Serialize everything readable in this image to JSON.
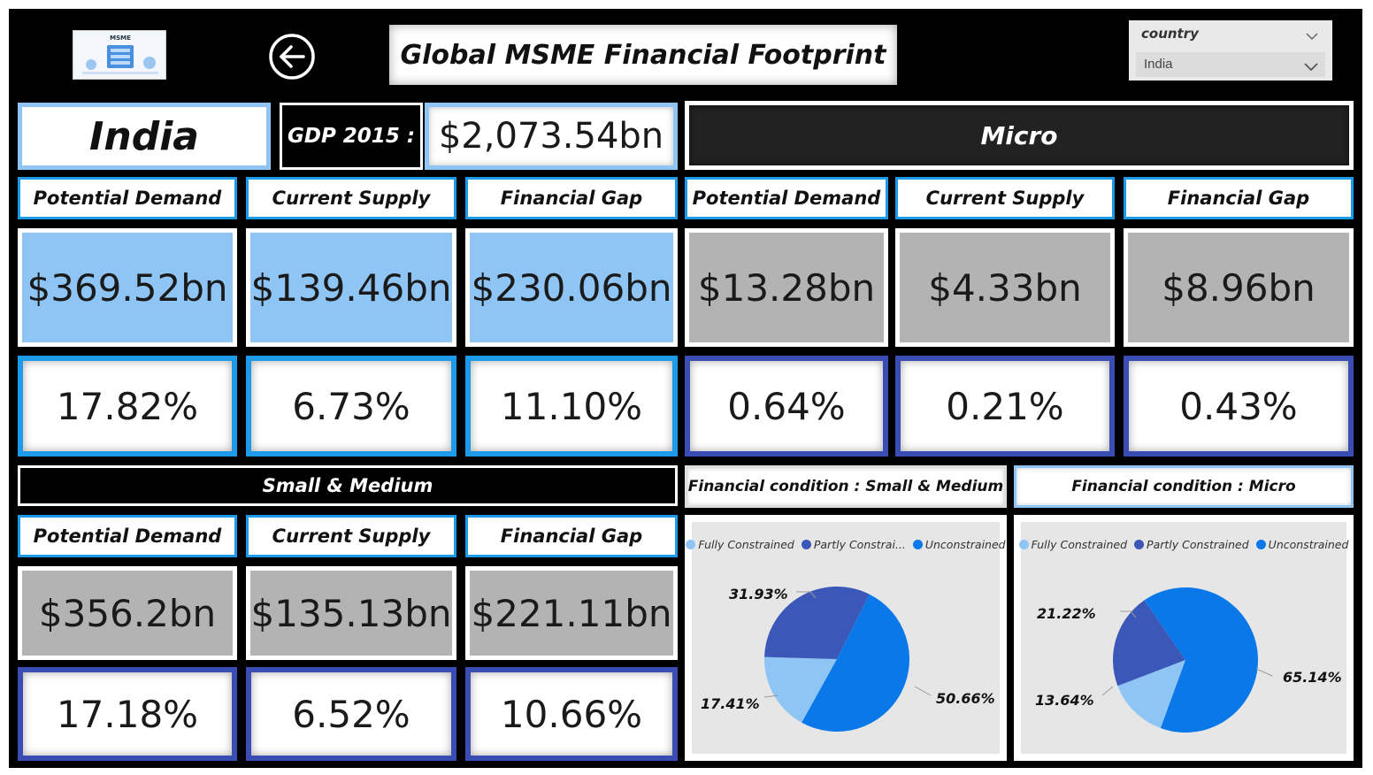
{
  "header": {
    "title": "Global MSME Financial Footprint",
    "logo_icon": "msme-logo-icon",
    "back_icon": "back-arrow-icon"
  },
  "filter": {
    "label": "country",
    "value": "India"
  },
  "country": {
    "name": "India",
    "gdp_label": "GDP 2015 :",
    "gdp_value": "$2,073.54bn"
  },
  "total": {
    "headers": [
      "Potential Demand",
      "Current Supply",
      "Financial Gap"
    ],
    "values": [
      "$369.52bn",
      "$139.46bn",
      "$230.06bn"
    ],
    "percents": [
      "17.82%",
      "6.73%",
      "11.10%"
    ]
  },
  "micro": {
    "title": "Micro",
    "headers": [
      "Potential Demand",
      "Current Supply",
      "Financial Gap"
    ],
    "values": [
      "$13.28bn",
      "$4.33bn",
      "$8.96bn"
    ],
    "percents": [
      "0.64%",
      "0.21%",
      "0.43%"
    ]
  },
  "small_medium": {
    "title": "Small & Medium",
    "headers": [
      "Potential Demand",
      "Current Supply",
      "Financial Gap"
    ],
    "values": [
      "$356.2bn",
      "$135.13bn",
      "$221.11bn"
    ],
    "percents": [
      "17.18%",
      "6.52%",
      "10.66%"
    ]
  },
  "colors": {
    "fully": "#8ec5f5",
    "partly": "#3b58b8",
    "unconstrained": "#0a78e8"
  },
  "chart_data": [
    {
      "type": "pie",
      "title": "Financial condition : Small & Medium",
      "legend": [
        "Fully Constrained",
        "Partly Constrai...",
        "Unconstrained"
      ],
      "categories": [
        "Fully Constrained",
        "Partly Constrained",
        "Unconstrained"
      ],
      "values": [
        17.41,
        31.93,
        50.66
      ],
      "labels": [
        "17.41%",
        "31.93%",
        "50.66%"
      ],
      "legend_position": "top"
    },
    {
      "type": "pie",
      "title": "Financial condition : Micro",
      "legend": [
        "Fully  Constrained",
        "Partly Constrained",
        "Unconstrained"
      ],
      "categories": [
        "Fully  Constrained",
        "Partly Constrained",
        "Unconstrained"
      ],
      "values": [
        13.64,
        21.22,
        65.14
      ],
      "labels": [
        "13.64%",
        "21.22%",
        "65.14%"
      ],
      "legend_position": "top"
    }
  ]
}
